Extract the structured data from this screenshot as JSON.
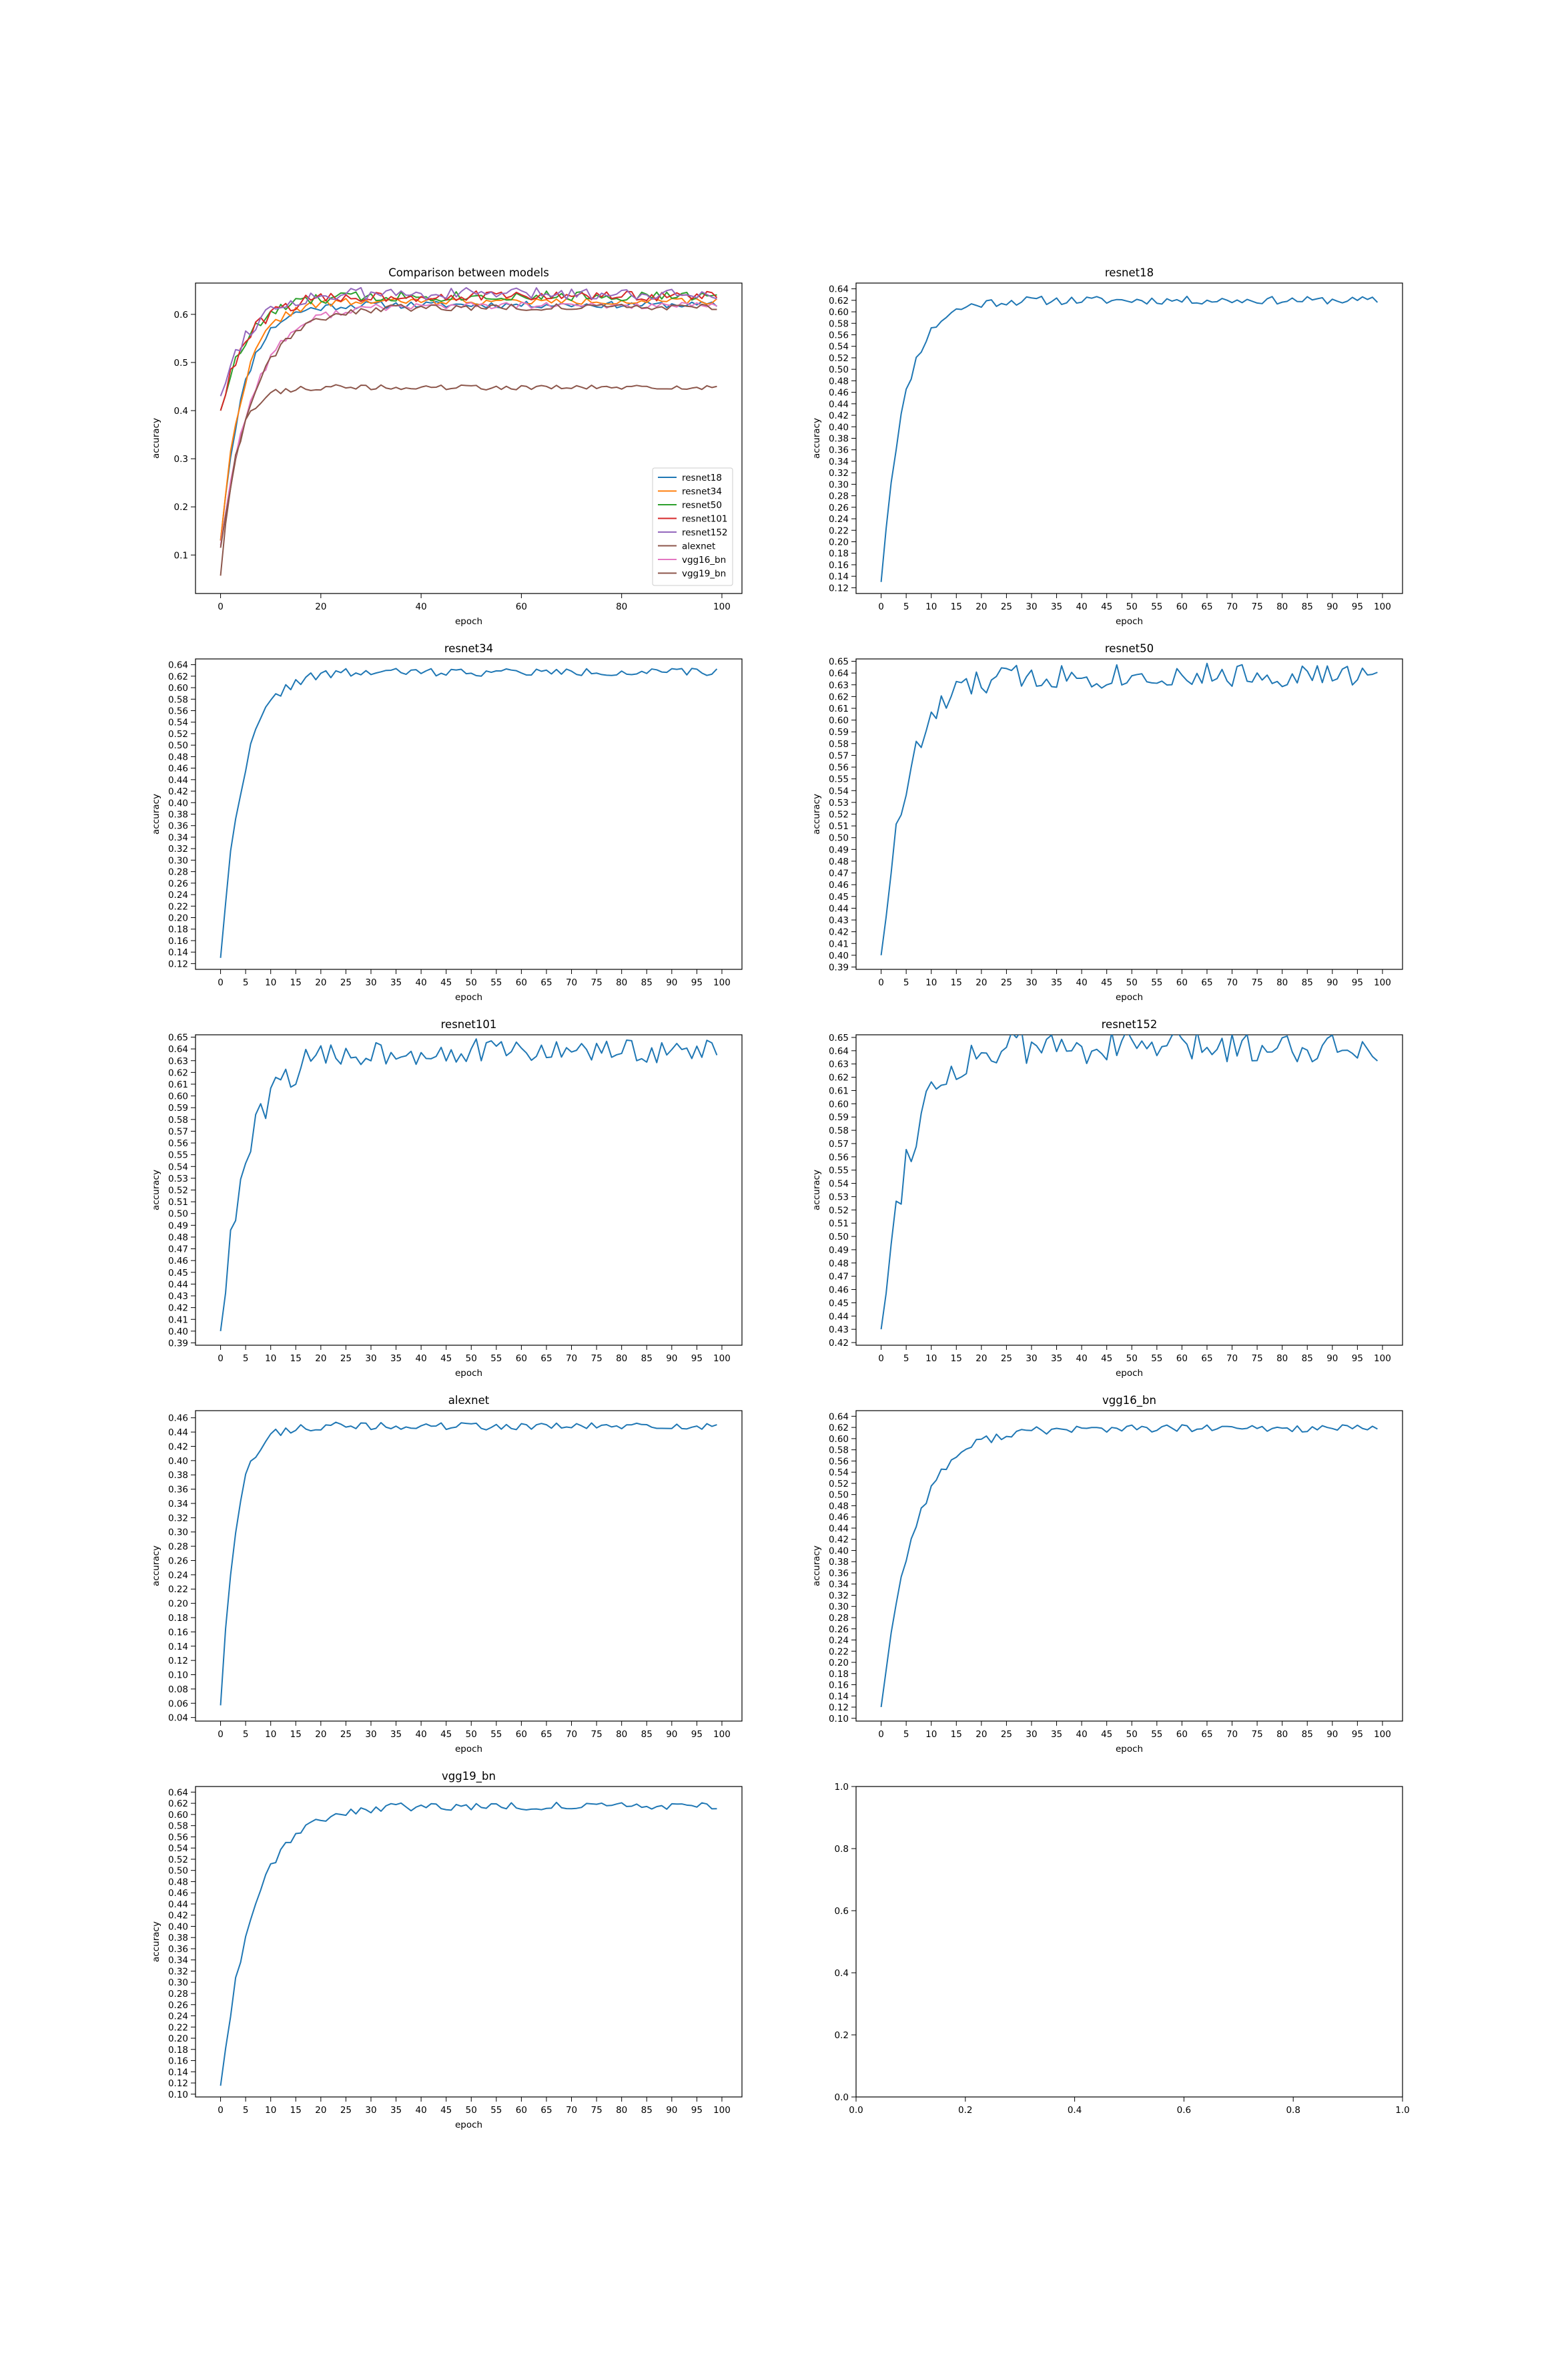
{
  "figure": {
    "series_colors": {
      "resnet18": "#1f77b4",
      "resnet34": "#ff7f0e",
      "resnet50": "#2ca02c",
      "resnet101": "#d62728",
      "resnet152": "#9467bd",
      "alexnet": "#8c564b",
      "vgg16_bn": "#e377c2",
      "vgg19_bn": "#8c564b"
    }
  },
  "chart_data": [
    {
      "type": "line",
      "title": "Comparison between models",
      "xlabel": "epoch",
      "ylabel": "accuracy",
      "xlim": [
        -5,
        104
      ],
      "ylim": [
        0.02,
        0.665
      ],
      "xticks": [
        0,
        20,
        40,
        60,
        80,
        100
      ],
      "yticks": [
        0.1,
        0.2,
        0.3,
        0.4,
        0.5,
        0.6
      ],
      "grid": false,
      "legend": "lower-right",
      "legend_entries": [
        "resnet18",
        "resnet34",
        "resnet50",
        "resnet101",
        "resnet152",
        "alexnet",
        "vgg16_bn",
        "vgg19_bn"
      ],
      "series": [
        {
          "name": "resnet18",
          "model": {
            "y0": 0.13,
            "plateau": 0.62,
            "tau": 4.5,
            "noise": 0.004,
            "seed": 11
          }
        },
        {
          "name": "resnet34",
          "model": {
            "y0": 0.13,
            "plateau": 0.627,
            "tau": 4.5,
            "noise": 0.004,
            "seed": 22
          }
        },
        {
          "name": "resnet50",
          "model": {
            "y0": 0.4,
            "plateau": 0.638,
            "tau": 5.5,
            "noise": 0.006,
            "seed": 33
          }
        },
        {
          "name": "resnet101",
          "model": {
            "y0": 0.4,
            "plateau": 0.638,
            "tau": 5.5,
            "noise": 0.006,
            "seed": 44
          }
        },
        {
          "name": "resnet152",
          "model": {
            "y0": 0.43,
            "plateau": 0.643,
            "tau": 5.5,
            "noise": 0.007,
            "seed": 55
          }
        },
        {
          "name": "alexnet",
          "model": {
            "y0": 0.057,
            "plateau": 0.448,
            "tau": 3.0,
            "noise": 0.003,
            "seed": 66
          }
        },
        {
          "name": "vgg16_bn",
          "model": {
            "y0": 0.12,
            "plateau": 0.618,
            "tau": 6.5,
            "noise": 0.004,
            "seed": 77
          }
        },
        {
          "name": "vgg19_bn",
          "model": {
            "y0": 0.115,
            "plateau": 0.615,
            "tau": 6.5,
            "noise": 0.004,
            "seed": 88
          }
        }
      ]
    },
    {
      "type": "line",
      "title": "resnet18",
      "xlabel": "epoch",
      "ylabel": "accuracy",
      "xlim": [
        -5,
        104
      ],
      "ylim": [
        0.11,
        0.65
      ],
      "xticks": [
        0,
        5,
        10,
        15,
        20,
        25,
        30,
        35,
        40,
        45,
        50,
        55,
        60,
        65,
        70,
        75,
        80,
        85,
        90,
        95,
        100
      ],
      "yticks": [
        0.12,
        0.14,
        0.16,
        0.18,
        0.2,
        0.22,
        0.24,
        0.26,
        0.28,
        0.3,
        0.32,
        0.34,
        0.36,
        0.38,
        0.4,
        0.42,
        0.44,
        0.46,
        0.48,
        0.5,
        0.52,
        0.54,
        0.56,
        0.58,
        0.6,
        0.62,
        0.64
      ],
      "ytick_decimals": 2,
      "grid": false,
      "series": [
        {
          "color_key": "resnet18",
          "model": {
            "y0": 0.13,
            "plateau": 0.62,
            "tau": 4.5,
            "noise": 0.004,
            "seed": 11
          }
        }
      ]
    },
    {
      "type": "line",
      "title": "resnet34",
      "xlabel": "epoch",
      "ylabel": "accuracy",
      "xlim": [
        -5,
        104
      ],
      "ylim": [
        0.11,
        0.65
      ],
      "xticks": [
        0,
        5,
        10,
        15,
        20,
        25,
        30,
        35,
        40,
        45,
        50,
        55,
        60,
        65,
        70,
        75,
        80,
        85,
        90,
        95,
        100
      ],
      "yticks": [
        0.12,
        0.14,
        0.16,
        0.18,
        0.2,
        0.22,
        0.24,
        0.26,
        0.28,
        0.3,
        0.32,
        0.34,
        0.36,
        0.38,
        0.4,
        0.42,
        0.44,
        0.46,
        0.48,
        0.5,
        0.52,
        0.54,
        0.56,
        0.58,
        0.6,
        0.62,
        0.64
      ],
      "ytick_decimals": 2,
      "grid": false,
      "series": [
        {
          "color_key": "resnet18",
          "model": {
            "y0": 0.13,
            "plateau": 0.627,
            "tau": 4.5,
            "noise": 0.004,
            "seed": 22
          }
        }
      ]
    },
    {
      "type": "line",
      "title": "resnet50",
      "xlabel": "epoch",
      "ylabel": "accuracy",
      "xlim": [
        -5,
        104
      ],
      "ylim": [
        0.388,
        0.652
      ],
      "xticks": [
        0,
        5,
        10,
        15,
        20,
        25,
        30,
        35,
        40,
        45,
        50,
        55,
        60,
        65,
        70,
        75,
        80,
        85,
        90,
        95,
        100
      ],
      "yticks": [
        0.39,
        0.4,
        0.41,
        0.42,
        0.43,
        0.44,
        0.45,
        0.46,
        0.47,
        0.48,
        0.49,
        0.5,
        0.51,
        0.52,
        0.53,
        0.54,
        0.55,
        0.56,
        0.57,
        0.58,
        0.59,
        0.6,
        0.61,
        0.62,
        0.63,
        0.64,
        0.65
      ],
      "ytick_decimals": 2,
      "grid": false,
      "series": [
        {
          "color_key": "resnet18",
          "model": {
            "y0": 0.4,
            "plateau": 0.638,
            "tau": 5.5,
            "noise": 0.006,
            "seed": 33
          }
        }
      ]
    },
    {
      "type": "line",
      "title": "resnet101",
      "xlabel": "epoch",
      "ylabel": "accuracy",
      "xlim": [
        -5,
        104
      ],
      "ylim": [
        0.388,
        0.652
      ],
      "xticks": [
        0,
        5,
        10,
        15,
        20,
        25,
        30,
        35,
        40,
        45,
        50,
        55,
        60,
        65,
        70,
        75,
        80,
        85,
        90,
        95,
        100
      ],
      "yticks": [
        0.39,
        0.4,
        0.41,
        0.42,
        0.43,
        0.44,
        0.45,
        0.46,
        0.47,
        0.48,
        0.49,
        0.5,
        0.51,
        0.52,
        0.53,
        0.54,
        0.55,
        0.56,
        0.57,
        0.58,
        0.59,
        0.6,
        0.61,
        0.62,
        0.63,
        0.64,
        0.65
      ],
      "ytick_decimals": 2,
      "grid": false,
      "series": [
        {
          "color_key": "resnet18",
          "model": {
            "y0": 0.4,
            "plateau": 0.638,
            "tau": 5.5,
            "noise": 0.006,
            "seed": 44
          }
        }
      ]
    },
    {
      "type": "line",
      "title": "resnet152",
      "xlabel": "epoch",
      "ylabel": "accuracy",
      "xlim": [
        -5,
        104
      ],
      "ylim": [
        0.418,
        0.652
      ],
      "xticks": [
        0,
        5,
        10,
        15,
        20,
        25,
        30,
        35,
        40,
        45,
        50,
        55,
        60,
        65,
        70,
        75,
        80,
        85,
        90,
        95,
        100
      ],
      "yticks": [
        0.42,
        0.43,
        0.44,
        0.45,
        0.46,
        0.47,
        0.48,
        0.49,
        0.5,
        0.51,
        0.52,
        0.53,
        0.54,
        0.55,
        0.56,
        0.57,
        0.58,
        0.59,
        0.6,
        0.61,
        0.62,
        0.63,
        0.64,
        0.65
      ],
      "ytick_decimals": 2,
      "grid": false,
      "series": [
        {
          "color_key": "resnet18",
          "model": {
            "y0": 0.43,
            "plateau": 0.643,
            "tau": 5.5,
            "noise": 0.007,
            "seed": 55
          }
        }
      ]
    },
    {
      "type": "line",
      "title": "alexnet",
      "xlabel": "epoch",
      "ylabel": "accuracy",
      "xlim": [
        -5,
        104
      ],
      "ylim": [
        0.035,
        0.47
      ],
      "xticks": [
        0,
        5,
        10,
        15,
        20,
        25,
        30,
        35,
        40,
        45,
        50,
        55,
        60,
        65,
        70,
        75,
        80,
        85,
        90,
        95,
        100
      ],
      "yticks": [
        0.04,
        0.06,
        0.08,
        0.1,
        0.12,
        0.14,
        0.16,
        0.18,
        0.2,
        0.22,
        0.24,
        0.26,
        0.28,
        0.3,
        0.32,
        0.34,
        0.36,
        0.38,
        0.4,
        0.42,
        0.44,
        0.46
      ],
      "ytick_decimals": 2,
      "grid": false,
      "series": [
        {
          "color_key": "resnet18",
          "model": {
            "y0": 0.057,
            "plateau": 0.448,
            "tau": 3.0,
            "noise": 0.003,
            "seed": 66
          }
        }
      ]
    },
    {
      "type": "line",
      "title": "vgg16_bn",
      "xlabel": "epoch",
      "ylabel": "accuracy",
      "xlim": [
        -5,
        104
      ],
      "ylim": [
        0.095,
        0.65
      ],
      "xticks": [
        0,
        5,
        10,
        15,
        20,
        25,
        30,
        35,
        40,
        45,
        50,
        55,
        60,
        65,
        70,
        75,
        80,
        85,
        90,
        95,
        100
      ],
      "yticks": [
        0.1,
        0.12,
        0.14,
        0.16,
        0.18,
        0.2,
        0.22,
        0.24,
        0.26,
        0.28,
        0.3,
        0.32,
        0.34,
        0.36,
        0.38,
        0.4,
        0.42,
        0.44,
        0.46,
        0.48,
        0.5,
        0.52,
        0.54,
        0.56,
        0.58,
        0.6,
        0.62,
        0.64
      ],
      "ytick_decimals": 2,
      "grid": false,
      "series": [
        {
          "color_key": "resnet18",
          "model": {
            "y0": 0.12,
            "plateau": 0.618,
            "tau": 6.5,
            "noise": 0.004,
            "seed": 77
          }
        }
      ]
    },
    {
      "type": "line",
      "title": "vgg19_bn",
      "xlabel": "epoch",
      "ylabel": "accuracy",
      "xlim": [
        -5,
        104
      ],
      "ylim": [
        0.095,
        0.65
      ],
      "xticks": [
        0,
        5,
        10,
        15,
        20,
        25,
        30,
        35,
        40,
        45,
        50,
        55,
        60,
        65,
        70,
        75,
        80,
        85,
        90,
        95,
        100
      ],
      "yticks": [
        0.1,
        0.12,
        0.14,
        0.16,
        0.18,
        0.2,
        0.22,
        0.24,
        0.26,
        0.28,
        0.3,
        0.32,
        0.34,
        0.36,
        0.38,
        0.4,
        0.42,
        0.44,
        0.46,
        0.48,
        0.5,
        0.52,
        0.54,
        0.56,
        0.58,
        0.6,
        0.62,
        0.64
      ],
      "ytick_decimals": 2,
      "grid": false,
      "series": [
        {
          "color_key": "resnet18",
          "model": {
            "y0": 0.115,
            "plateau": 0.615,
            "tau": 6.5,
            "noise": 0.004,
            "seed": 88
          }
        }
      ]
    },
    {
      "type": "line",
      "title": "",
      "xlabel": "",
      "ylabel": "",
      "xlim": [
        0.0,
        1.0
      ],
      "ylim": [
        0.0,
        1.0
      ],
      "xticks": [
        0.0,
        0.2,
        0.4,
        0.6,
        0.8,
        1.0
      ],
      "yticks": [
        0.0,
        0.2,
        0.4,
        0.6,
        0.8,
        1.0
      ],
      "xtick_decimals": 1,
      "ytick_decimals": 1,
      "grid": false,
      "series": []
    }
  ]
}
